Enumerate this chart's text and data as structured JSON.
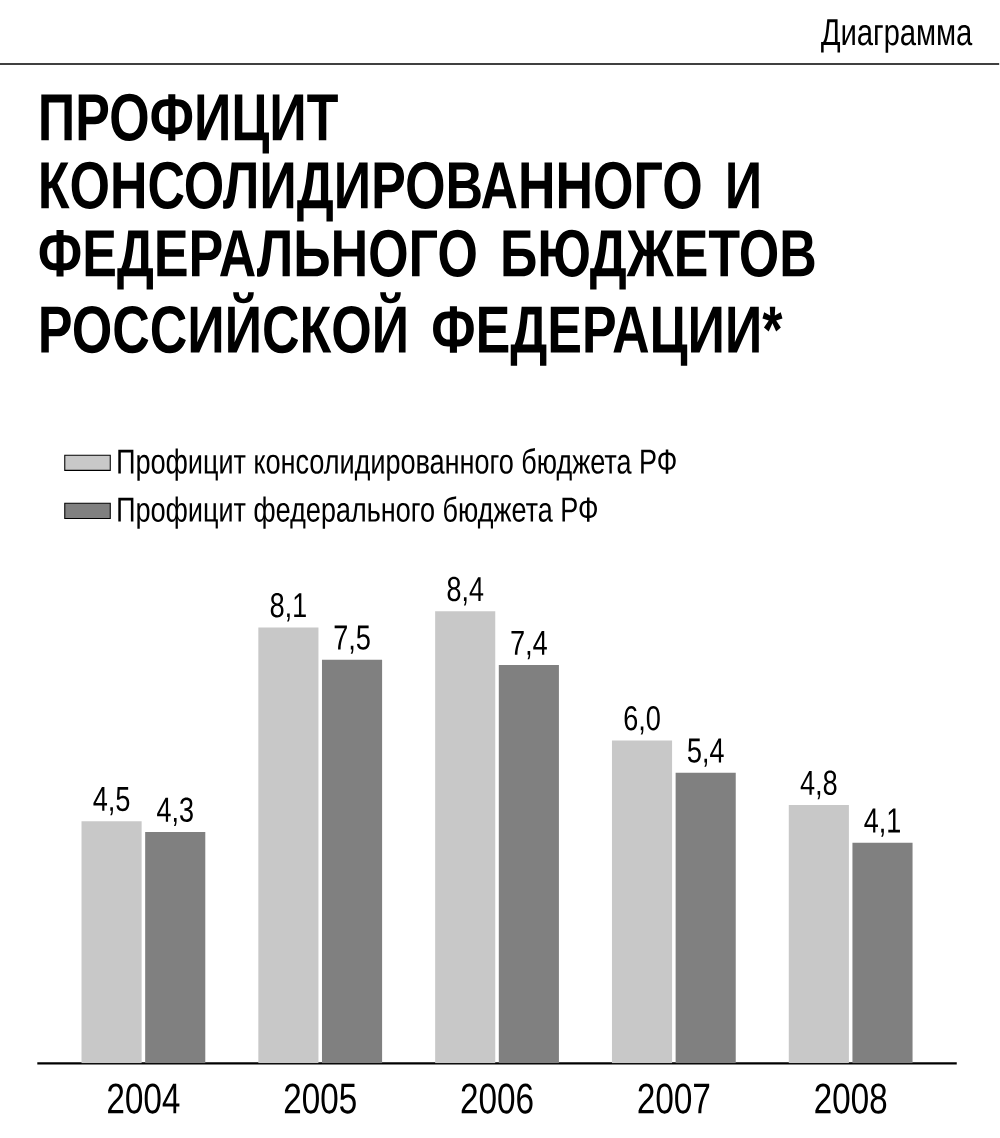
{
  "chart_data": {
    "type": "bar",
    "title": "ПРОФИЦИТ КОНСОЛИДИРОВАННОГО И ФЕДЕРАЛЬНОГО БЮДЖЕТОВ РОССИЙСКОЙ ФЕДЕРАЦИИ*",
    "annotations": [
      "Диаграмма"
    ],
    "categories": [
      "2004",
      "2005",
      "2006",
      "2007",
      "2008"
    ],
    "series": [
      {
        "name": "Профицит консолидированного бюджета РФ",
        "color": "#c8c8c8",
        "values": [
          4.5,
          8.1,
          8.4,
          6.0,
          4.8
        ],
        "value_labels": [
          "4,5",
          "8,1",
          "8,4",
          "6,0",
          "4,8"
        ]
      },
      {
        "name": "Профицит федерального бюджета РФ",
        "color": "#808080",
        "values": [
          4.3,
          7.5,
          7.4,
          5.4,
          4.1
        ],
        "value_labels": [
          "4,3",
          "7,5",
          "7,4",
          "5,4",
          "4,1"
        ]
      }
    ],
    "legend": "top left"
  }
}
